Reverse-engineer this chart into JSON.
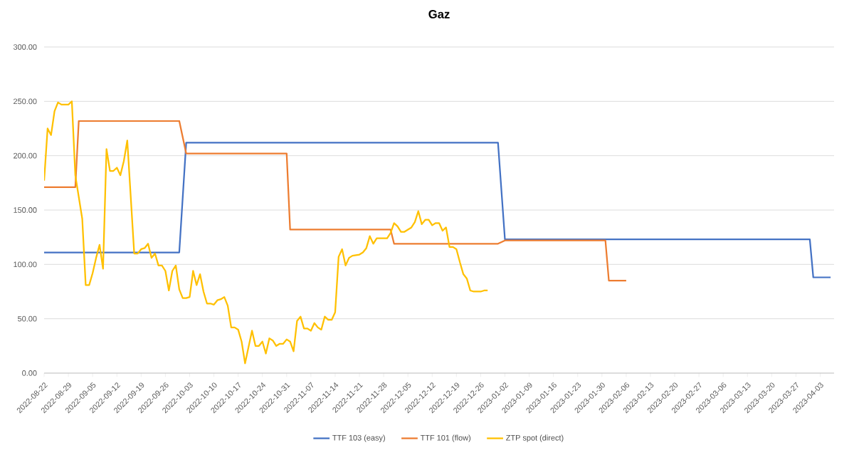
{
  "chart_data": {
    "type": "line",
    "title": "Gaz",
    "xlim": [
      "2022-08-22",
      "2023-04-07"
    ],
    "xticks": [
      "2022-08-22",
      "2022-08-29",
      "2022-09-05",
      "2022-09-12",
      "2022-09-19",
      "2022-09-26",
      "2022-10-03",
      "2022-10-10",
      "2022-10-17",
      "2022-10-24",
      "2022-10-31",
      "2022-11-07",
      "2022-11-14",
      "2022-11-21",
      "2022-11-28",
      "2022-12-05",
      "2022-12-12",
      "2022-12-19",
      "2022-12-26",
      "2023-01-02",
      "2023-01-09",
      "2023-01-16",
      "2023-01-23",
      "2023-01-30",
      "2023-02-06",
      "2023-02-13",
      "2023-02-20",
      "2023-02-27",
      "2023-03-06",
      "2023-03-13",
      "2023-03-20",
      "2023-03-27",
      "2023-04-03"
    ],
    "ylim": [
      0,
      300
    ],
    "yticks": [
      {
        "value": 0,
        "label": "0.00"
      },
      {
        "value": 50,
        "label": "50.00"
      },
      {
        "value": 100,
        "label": "100.00"
      },
      {
        "value": 150,
        "label": "150.00"
      },
      {
        "value": 200,
        "label": "200.00"
      },
      {
        "value": 250,
        "label": "250.00"
      },
      {
        "value": 300,
        "label": "300.00"
      }
    ],
    "grid": "y",
    "legend": "bottom",
    "marker": "none",
    "line_style": "solid",
    "series": [
      {
        "name": "TTF 103 (easy)",
        "color": "#4472c4",
        "x": [
          "2022-08-22",
          "2022-09-30",
          "2022-10-02",
          "2022-12-31",
          "2023-01-02",
          "2023-03-31",
          "2023-04-01",
          "2023-04-06"
        ],
        "values": [
          111,
          111,
          212,
          212,
          123,
          123,
          88,
          88
        ]
      },
      {
        "name": "TTF 101 (flow)",
        "color": "#ed7d31",
        "x": [
          "2022-08-22",
          "2022-08-31",
          "2022-09-01",
          "2022-09-30",
          "2022-10-02",
          "2022-10-31",
          "2022-11-01",
          "2022-11-30",
          "2022-12-01",
          "2022-12-31",
          "2023-01-02",
          "2023-01-31",
          "2023-02-01",
          "2023-02-06"
        ],
        "values": [
          171,
          171,
          232,
          232,
          202,
          202,
          132,
          132,
          119,
          119,
          122,
          122,
          85,
          85
        ]
      },
      {
        "name": "ZTP spot (direct)",
        "color": "#ffc000",
        "x": [
          "2022-08-22",
          "2022-08-23",
          "2022-08-24",
          "2022-08-25",
          "2022-08-26",
          "2022-08-27",
          "2022-08-29",
          "2022-08-30",
          "2022-08-31",
          "2022-09-02",
          "2022-09-03",
          "2022-09-04",
          "2022-09-05",
          "2022-09-06",
          "2022-09-07",
          "2022-09-08",
          "2022-09-09",
          "2022-09-10",
          "2022-09-11",
          "2022-09-12",
          "2022-09-13",
          "2022-09-14",
          "2022-09-15",
          "2022-09-17",
          "2022-09-18",
          "2022-09-19",
          "2022-09-20",
          "2022-09-21",
          "2022-09-22",
          "2022-09-23",
          "2022-09-24",
          "2022-09-25",
          "2022-09-26",
          "2022-09-27",
          "2022-09-28",
          "2022-09-29",
          "2022-09-30",
          "2022-10-01",
          "2022-10-02",
          "2022-10-03",
          "2022-10-04",
          "2022-10-05",
          "2022-10-06",
          "2022-10-07",
          "2022-10-08",
          "2022-10-09",
          "2022-10-10",
          "2022-10-11",
          "2022-10-12",
          "2022-10-13",
          "2022-10-14",
          "2022-10-15",
          "2022-10-16",
          "2022-10-17",
          "2022-10-18",
          "2022-10-19",
          "2022-10-20",
          "2022-10-21",
          "2022-10-22",
          "2022-10-23",
          "2022-10-24",
          "2022-10-25",
          "2022-10-26",
          "2022-10-27",
          "2022-10-28",
          "2022-10-29",
          "2022-10-30",
          "2022-10-31",
          "2022-11-01",
          "2022-11-02",
          "2022-11-03",
          "2022-11-04",
          "2022-11-05",
          "2022-11-06",
          "2022-11-07",
          "2022-11-08",
          "2022-11-09",
          "2022-11-10",
          "2022-11-11",
          "2022-11-12",
          "2022-11-13",
          "2022-11-14",
          "2022-11-15",
          "2022-11-16",
          "2022-11-17",
          "2022-11-18",
          "2022-11-19",
          "2022-11-21",
          "2022-11-22",
          "2022-11-23",
          "2022-11-24",
          "2022-11-25",
          "2022-11-26",
          "2022-11-27",
          "2022-11-29",
          "2022-11-30",
          "2022-12-01",
          "2022-12-02",
          "2022-12-03",
          "2022-12-04",
          "2022-12-05",
          "2022-12-06",
          "2022-12-07",
          "2022-12-08",
          "2022-12-09",
          "2022-12-10",
          "2022-12-11",
          "2022-12-12",
          "2022-12-13",
          "2022-12-14",
          "2022-12-15",
          "2022-12-16",
          "2022-12-17",
          "2022-12-18",
          "2022-12-19",
          "2022-12-20",
          "2022-12-21",
          "2022-12-22",
          "2022-12-23",
          "2022-12-24",
          "2022-12-25",
          "2022-12-26",
          "2022-12-27",
          "2022-12-28"
        ],
        "values": [
          177,
          225,
          219,
          241,
          249,
          247,
          247,
          250,
          182,
          142,
          81,
          81,
          92,
          106,
          118,
          96,
          206,
          186,
          186,
          189,
          182,
          195,
          214,
          110,
          110,
          114,
          115,
          119,
          106,
          110,
          99,
          99,
          94,
          76,
          94,
          99,
          77,
          69,
          69,
          70,
          94,
          81,
          91,
          75,
          64,
          64,
          63,
          67,
          68,
          70,
          62,
          42,
          42,
          40,
          29,
          9,
          24,
          39,
          25,
          25,
          29,
          18,
          32,
          30,
          25,
          27,
          27,
          31,
          29,
          20,
          48,
          52,
          41,
          41,
          39,
          46,
          42,
          40,
          52,
          49,
          49,
          56,
          107,
          114,
          99,
          106,
          108,
          109,
          111,
          115,
          126,
          119,
          124,
          124,
          124,
          129,
          138,
          135,
          130,
          130,
          132,
          134,
          139,
          149,
          137,
          141,
          141,
          136,
          138,
          138,
          131,
          134,
          116,
          116,
          114,
          102,
          91,
          87,
          76,
          75,
          75,
          75,
          76,
          76
        ]
      }
    ]
  }
}
